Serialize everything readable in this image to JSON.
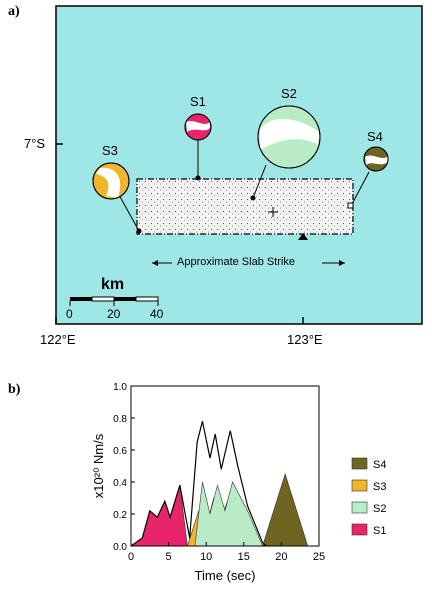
{
  "panel_a": {
    "label": "a)",
    "lat_label": "7°S",
    "lon_labels": [
      "122°E",
      "123°E"
    ],
    "slab_text": "Approximate Slab Strike",
    "scale": {
      "title": "km",
      "ticks": [
        "0",
        "20",
        "40"
      ]
    },
    "colors": {
      "ocean": "#9fe6e6",
      "fault": "#f2f2f2"
    },
    "mechanisms": [
      {
        "name": "S1",
        "color": "#e8256a"
      },
      {
        "name": "S2",
        "color": "#b7ecc5"
      },
      {
        "name": "S3",
        "color": "#f0b52a"
      },
      {
        "name": "S4",
        "color": "#6f6420"
      }
    ]
  },
  "panel_b": {
    "label": "b)"
  },
  "chart_data": {
    "type": "area",
    "title": "",
    "xlabel": "Time (sec)",
    "ylabel": "x10²⁰ Nm/s",
    "xlim": [
      0,
      25
    ],
    "ylim": [
      0,
      1.0
    ],
    "x_ticks": [
      "0",
      "5",
      "10",
      "15",
      "20",
      "25"
    ],
    "y_ticks": [
      "0.0",
      "0.2",
      "0.4",
      "0.6",
      "0.8",
      "1.0"
    ],
    "legend_position": "right",
    "series": [
      {
        "name": "S4",
        "color": "#6f6420",
        "points": [
          [
            17.5,
            0
          ],
          [
            20.5,
            0.45
          ],
          [
            23.5,
            0
          ]
        ]
      },
      {
        "name": "S3",
        "color": "#f0b52a",
        "points": [
          [
            7.5,
            0
          ],
          [
            9,
            0.22
          ],
          [
            10,
            0.12
          ],
          [
            11,
            0.3
          ],
          [
            12,
            0.18
          ],
          [
            13,
            0.3
          ],
          [
            15,
            0
          ]
        ]
      },
      {
        "name": "S2",
        "color": "#b7ecc5",
        "points": [
          [
            8.5,
            0
          ],
          [
            9.5,
            0.4
          ],
          [
            10.5,
            0.2
          ],
          [
            11.5,
            0.38
          ],
          [
            12.5,
            0.22
          ],
          [
            13.5,
            0.4
          ],
          [
            15.5,
            0.22
          ],
          [
            17.5,
            0
          ]
        ]
      },
      {
        "name": "S1",
        "color": "#e8256a",
        "points": [
          [
            0,
            0
          ],
          [
            1.5,
            0.05
          ],
          [
            2.5,
            0.22
          ],
          [
            3.5,
            0.18
          ],
          [
            4.5,
            0.28
          ],
          [
            5.2,
            0.18
          ],
          [
            6.5,
            0.38
          ],
          [
            7.5,
            0
          ]
        ]
      }
    ],
    "total": {
      "color": "#ffffff",
      "points": [
        [
          0,
          0
        ],
        [
          1.5,
          0.05
        ],
        [
          2.5,
          0.22
        ],
        [
          3.5,
          0.18
        ],
        [
          4.5,
          0.28
        ],
        [
          5.2,
          0.18
        ],
        [
          6.5,
          0.38
        ],
        [
          7.8,
          0.05
        ],
        [
          8.8,
          0.65
        ],
        [
          9.5,
          0.78
        ],
        [
          10.5,
          0.55
        ],
        [
          11.2,
          0.7
        ],
        [
          12,
          0.48
        ],
        [
          13.2,
          0.72
        ],
        [
          14.2,
          0.5
        ],
        [
          15.5,
          0.25
        ],
        [
          17.5,
          0.02
        ],
        [
          18,
          0
        ]
      ]
    }
  }
}
